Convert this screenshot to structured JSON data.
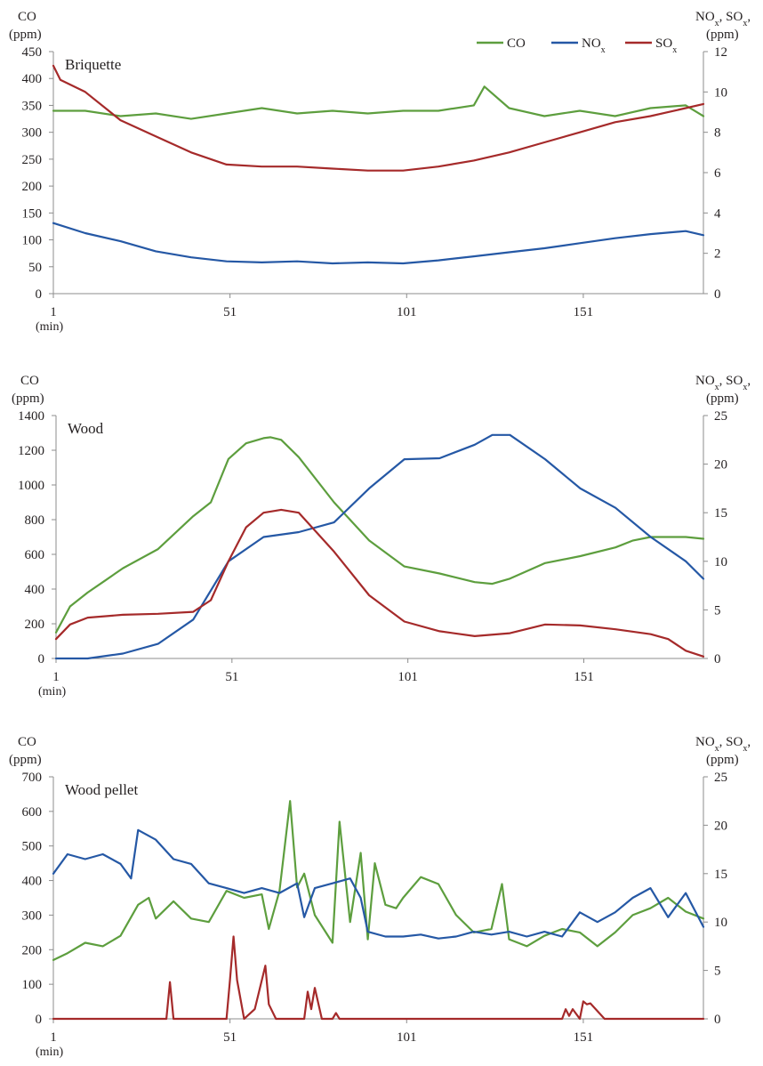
{
  "legend": [
    {
      "label": "CO",
      "color": "#5d9e3e"
    },
    {
      "label": "NO",
      "sub": "x",
      "color": "#2558a5"
    },
    {
      "label": "SO",
      "sub": "x",
      "color": "#a52a2a"
    }
  ],
  "chart_data": [
    {
      "type": "line",
      "title": "Briquette",
      "ylabel_left": {
        "line1": "CO",
        "line2": "(ppm)"
      },
      "ylabel_right": {
        "parts": [
          {
            "t": "NO"
          },
          {
            "t": "x",
            "sub": true
          },
          {
            "t": ", SO"
          },
          {
            "t": "x",
            "sub": true
          },
          {
            "t": ","
          }
        ],
        "line2": "(ppm)"
      },
      "xlabel": "(min)",
      "x_ticks": [
        "1",
        "51",
        "101",
        "151"
      ],
      "xlim": [
        1,
        185
      ],
      "ylim_left": [
        0,
        450
      ],
      "ylim_right": [
        0,
        12
      ],
      "yticks_left": [
        "0",
        "50",
        "100",
        "150",
        "200",
        "250",
        "300",
        "350",
        "400",
        "450"
      ],
      "yticks_right": [
        "0",
        "2",
        "4",
        "6",
        "8",
        "10",
        "12"
      ],
      "series": [
        {
          "name": "CO",
          "axis": "left",
          "color": "#5d9e3e",
          "x": [
            1,
            10,
            20,
            30,
            40,
            50,
            60,
            70,
            80,
            90,
            100,
            110,
            120,
            123,
            130,
            140,
            150,
            160,
            170,
            180,
            185
          ],
          "y": [
            340,
            340,
            330,
            335,
            325,
            335,
            345,
            335,
            340,
            335,
            340,
            340,
            350,
            385,
            345,
            330,
            340,
            330,
            345,
            350,
            330
          ]
        },
        {
          "name": "NO<sub>x</sub>",
          "axis": "right",
          "color": "#2558a5",
          "x": [
            1,
            10,
            20,
            30,
            40,
            50,
            60,
            70,
            80,
            90,
            100,
            110,
            120,
            130,
            140,
            150,
            160,
            170,
            180,
            185
          ],
          "y": [
            3.5,
            3.0,
            2.6,
            2.1,
            1.8,
            1.6,
            1.55,
            1.6,
            1.5,
            1.55,
            1.5,
            1.65,
            1.85,
            2.05,
            2.25,
            2.5,
            2.75,
            2.95,
            3.1,
            2.9
          ]
        },
        {
          "name": "SO<sub>x</sub>",
          "axis": "right",
          "color": "#a52a2a",
          "x": [
            1,
            3,
            10,
            20,
            30,
            40,
            50,
            60,
            70,
            80,
            90,
            100,
            110,
            120,
            130,
            140,
            150,
            160,
            170,
            180,
            185
          ],
          "y": [
            11.3,
            10.6,
            10.0,
            8.6,
            7.8,
            7.0,
            6.4,
            6.3,
            6.3,
            6.2,
            6.1,
            6.1,
            6.3,
            6.6,
            7.0,
            7.5,
            8.0,
            8.5,
            8.8,
            9.2,
            9.4
          ]
        }
      ]
    },
    {
      "type": "line",
      "title": "Wood",
      "ylabel_left": {
        "line1": "CO",
        "line2": "(ppm)"
      },
      "ylabel_right": {
        "parts": [
          {
            "t": "NO"
          },
          {
            "t": "x",
            "sub": true
          },
          {
            "t": ", SO"
          },
          {
            "t": "x",
            "sub": true
          },
          {
            "t": ","
          }
        ],
        "line2": "(ppm)"
      },
      "xlabel": "(min)",
      "x_ticks": [
        "1",
        "51",
        "101",
        "151"
      ],
      "xlim": [
        1,
        185
      ],
      "ylim_left": [
        0,
        1400
      ],
      "ylim_right": [
        0,
        25
      ],
      "yticks_left": [
        "0",
        "200",
        "400",
        "600",
        "800",
        "1000",
        "1200",
        "1400"
      ],
      "yticks_right": [
        "0",
        "5",
        "10",
        "15",
        "20",
        "25"
      ],
      "series": [
        {
          "name": "CO",
          "axis": "left",
          "color": "#5d9e3e",
          "x": [
            1,
            5,
            10,
            15,
            20,
            30,
            40,
            45,
            50,
            55,
            60,
            62,
            65,
            70,
            80,
            90,
            100,
            110,
            120,
            125,
            130,
            140,
            150,
            160,
            165,
            170,
            180,
            185
          ],
          "y": [
            150,
            300,
            380,
            450,
            520,
            630,
            820,
            900,
            1150,
            1240,
            1270,
            1275,
            1260,
            1160,
            900,
            680,
            530,
            490,
            440,
            430,
            460,
            550,
            590,
            640,
            680,
            700,
            700,
            690
          ]
        },
        {
          "name": "NO<sub>x</sub>",
          "axis": "right",
          "color": "#2558a5",
          "x": [
            1,
            10,
            20,
            30,
            40,
            50,
            60,
            70,
            80,
            90,
            100,
            110,
            120,
            125,
            130,
            140,
            150,
            160,
            170,
            180,
            185
          ],
          "y": [
            0,
            0,
            0.5,
            1.5,
            4.0,
            10.0,
            12.5,
            13.0,
            14.0,
            17.5,
            20.5,
            20.6,
            22.0,
            23.0,
            23.0,
            20.5,
            17.5,
            15.5,
            12.5,
            10.0,
            8.2
          ]
        },
        {
          "name": "SO<sub>x</sub>",
          "axis": "right",
          "color": "#a52a2a",
          "x": [
            1,
            5,
            10,
            20,
            30,
            40,
            45,
            50,
            55,
            60,
            65,
            70,
            80,
            90,
            100,
            110,
            120,
            130,
            140,
            150,
            160,
            170,
            175,
            180,
            185
          ],
          "y": [
            2.0,
            3.5,
            4.2,
            4.5,
            4.6,
            4.8,
            6.0,
            10.0,
            13.5,
            15.0,
            15.3,
            15.0,
            11.0,
            6.5,
            3.8,
            2.8,
            2.3,
            2.6,
            3.5,
            3.4,
            3.0,
            2.5,
            2.0,
            0.8,
            0.2
          ]
        }
      ]
    },
    {
      "type": "line",
      "title": "Wood pellet",
      "ylabel_left": {
        "line1": "CO",
        "line2": "(ppm)"
      },
      "ylabel_right": {
        "parts": [
          {
            "t": "NO"
          },
          {
            "t": "x",
            "sub": true
          },
          {
            "t": ", SO"
          },
          {
            "t": "x",
            "sub": true
          },
          {
            "t": ","
          }
        ],
        "line2": "(ppm)"
      },
      "xlabel": "(min)",
      "x_ticks": [
        "1",
        "51",
        "101",
        "151"
      ],
      "xlim": [
        1,
        185
      ],
      "ylim_left": [
        0,
        700
      ],
      "ylim_right": [
        0,
        25
      ],
      "yticks_left": [
        "0",
        "100",
        "200",
        "300",
        "400",
        "500",
        "600",
        "700"
      ],
      "yticks_right": [
        "0",
        "5",
        "10",
        "15",
        "20",
        "25"
      ],
      "series": [
        {
          "name": "CO",
          "axis": "left",
          "color": "#5d9e3e",
          "x": [
            1,
            5,
            10,
            15,
            20,
            25,
            28,
            30,
            35,
            40,
            45,
            50,
            55,
            60,
            62,
            65,
            68,
            70,
            72,
            75,
            80,
            82,
            85,
            88,
            90,
            92,
            95,
            98,
            100,
            105,
            110,
            115,
            120,
            125,
            128,
            130,
            135,
            140,
            145,
            150,
            155,
            160,
            165,
            170,
            175,
            180,
            185
          ],
          "y": [
            170,
            190,
            220,
            210,
            240,
            330,
            350,
            290,
            340,
            290,
            280,
            370,
            350,
            360,
            260,
            370,
            630,
            380,
            420,
            300,
            220,
            570,
            280,
            480,
            230,
            450,
            330,
            320,
            350,
            410,
            390,
            300,
            250,
            260,
            390,
            230,
            210,
            240,
            260,
            250,
            210,
            250,
            300,
            320,
            350,
            310,
            290
          ]
        },
        {
          "name": "NO<sub>x</sub>",
          "axis": "right",
          "color": "#2558a5",
          "x": [
            1,
            5,
            10,
            15,
            20,
            23,
            25,
            30,
            35,
            40,
            45,
            50,
            55,
            60,
            65,
            70,
            72,
            75,
            80,
            85,
            88,
            90,
            95,
            100,
            105,
            110,
            115,
            120,
            125,
            130,
            135,
            140,
            145,
            150,
            155,
            160,
            165,
            170,
            175,
            180,
            185
          ],
          "y": [
            15.0,
            17.0,
            16.5,
            17.0,
            16.0,
            14.5,
            19.5,
            18.5,
            16.5,
            16.0,
            14.0,
            13.5,
            13.0,
            13.5,
            13.0,
            14.0,
            10.5,
            13.5,
            14.0,
            14.5,
            12.5,
            9.0,
            8.5,
            8.5,
            8.7,
            8.3,
            8.5,
            9.0,
            8.7,
            9.0,
            8.5,
            9.0,
            8.5,
            11.0,
            10.0,
            11.0,
            12.5,
            13.5,
            10.5,
            13.0,
            9.5
          ]
        },
        {
          "name": "SO<sub>x</sub>",
          "axis": "right",
          "color": "#a52a2a",
          "x": [
            1,
            28,
            33,
            34,
            35,
            50,
            51,
            52,
            53,
            55,
            58,
            61,
            62,
            64,
            72,
            73,
            74,
            75,
            77,
            80,
            81,
            82,
            145,
            146,
            147,
            148,
            150,
            151,
            152,
            153,
            155,
            156,
            157,
            185
          ],
          "y": [
            0,
            0,
            0,
            3.8,
            0,
            0,
            4.0,
            8.5,
            4.0,
            0,
            1.0,
            5.5,
            1.5,
            0,
            0,
            2.8,
            1.0,
            3.2,
            0,
            0,
            0.6,
            0,
            0,
            1.0,
            0.3,
            1.0,
            0,
            1.8,
            1.5,
            1.6,
            0.8,
            0.4,
            0,
            0
          ]
        }
      ]
    }
  ]
}
